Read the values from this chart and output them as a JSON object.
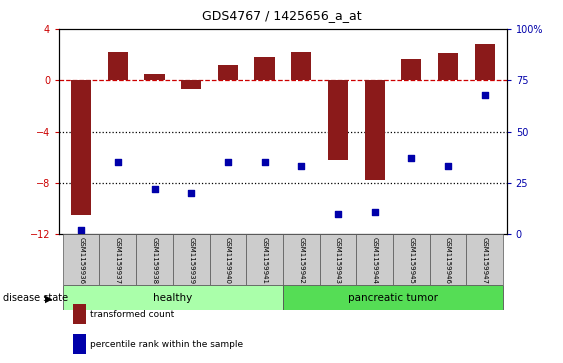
{
  "title": "GDS4767 / 1425656_a_at",
  "samples": [
    "GSM1159936",
    "GSM1159937",
    "GSM1159938",
    "GSM1159939",
    "GSM1159940",
    "GSM1159941",
    "GSM1159942",
    "GSM1159943",
    "GSM1159944",
    "GSM1159945",
    "GSM1159946",
    "GSM1159947"
  ],
  "bar_values": [
    -10.5,
    2.2,
    0.5,
    -0.7,
    1.2,
    1.8,
    2.2,
    -6.2,
    -7.8,
    1.7,
    2.1,
    2.8
  ],
  "dot_values": [
    2,
    35,
    22,
    20,
    35,
    35,
    33,
    10,
    11,
    37,
    33,
    68
  ],
  "bar_color": "#8B1A1A",
  "dot_color": "#0000AA",
  "ylim_left": [
    -12,
    4
  ],
  "ylim_right": [
    0,
    100
  ],
  "yticks_left": [
    -12,
    -8,
    -4,
    0,
    4
  ],
  "yticks_right": [
    0,
    25,
    50,
    75,
    100
  ],
  "hline_y": 0,
  "dotted_lines": [
    -4,
    -8
  ],
  "healthy_count": 6,
  "tumor_count": 6,
  "healthy_color": "#AAFFAA",
  "tumor_color": "#55DD55",
  "group_label_healthy": "healthy",
  "group_label_tumor": "pancreatic tumor",
  "disease_state_label": "disease state",
  "legend_bar_label": "transformed count",
  "legend_dot_label": "percentile rank within the sample",
  "bar_width": 0.55,
  "tick_bg_color": "#CCCCCC"
}
